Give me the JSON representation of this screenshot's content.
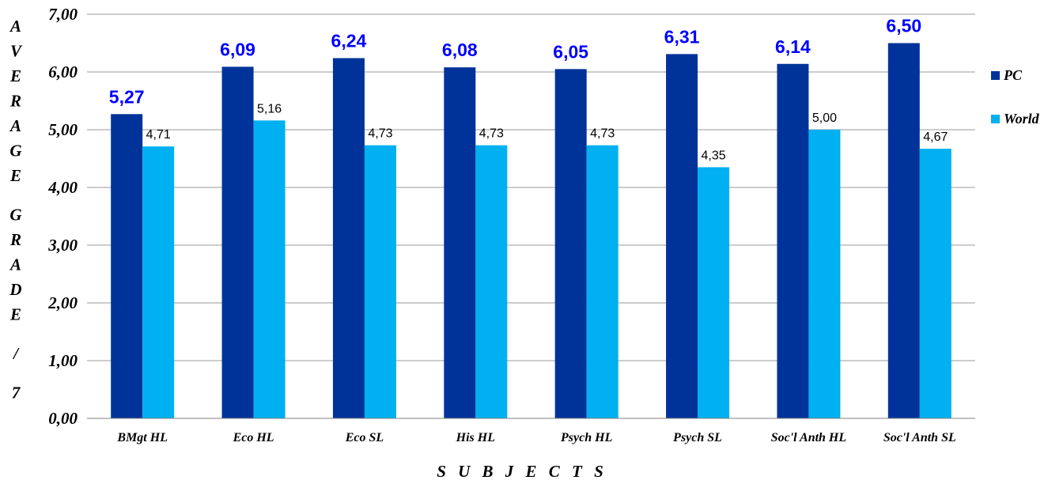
{
  "chart_data": {
    "type": "bar",
    "categories": [
      "BMgt HL",
      "Eco HL",
      "Eco SL",
      "His HL",
      "Psych HL",
      "Psych SL",
      "Soc'l Anth HL",
      "Soc'l Anth SL"
    ],
    "series": [
      {
        "name": "PC",
        "values": [
          5.27,
          6.09,
          6.24,
          6.08,
          6.05,
          6.31,
          6.14,
          6.5
        ],
        "labels": [
          "5,27",
          "6,09",
          "6,24",
          "6,08",
          "6,05",
          "6,31",
          "6,14",
          "6,50"
        ],
        "color": "#003399",
        "label_color": "#0000ff"
      },
      {
        "name": "World",
        "values": [
          4.71,
          5.16,
          4.73,
          4.73,
          4.73,
          4.35,
          5.0,
          4.67
        ],
        "labels": [
          "4,71",
          "5,16",
          "4,73",
          "4,73",
          "4,73",
          "4,35",
          "5,00",
          "4,67"
        ],
        "color": "#00b0f0"
      }
    ],
    "yticks": [
      "0,00",
      "1,00",
      "2,00",
      "3,00",
      "4,00",
      "5,00",
      "6,00",
      "7,00"
    ],
    "ylim": [
      0,
      7
    ],
    "xlabel": "S U B J E C T S",
    "ylabel": "AVERAGE GRADE / 7",
    "grid": true,
    "legend_position": "right"
  }
}
